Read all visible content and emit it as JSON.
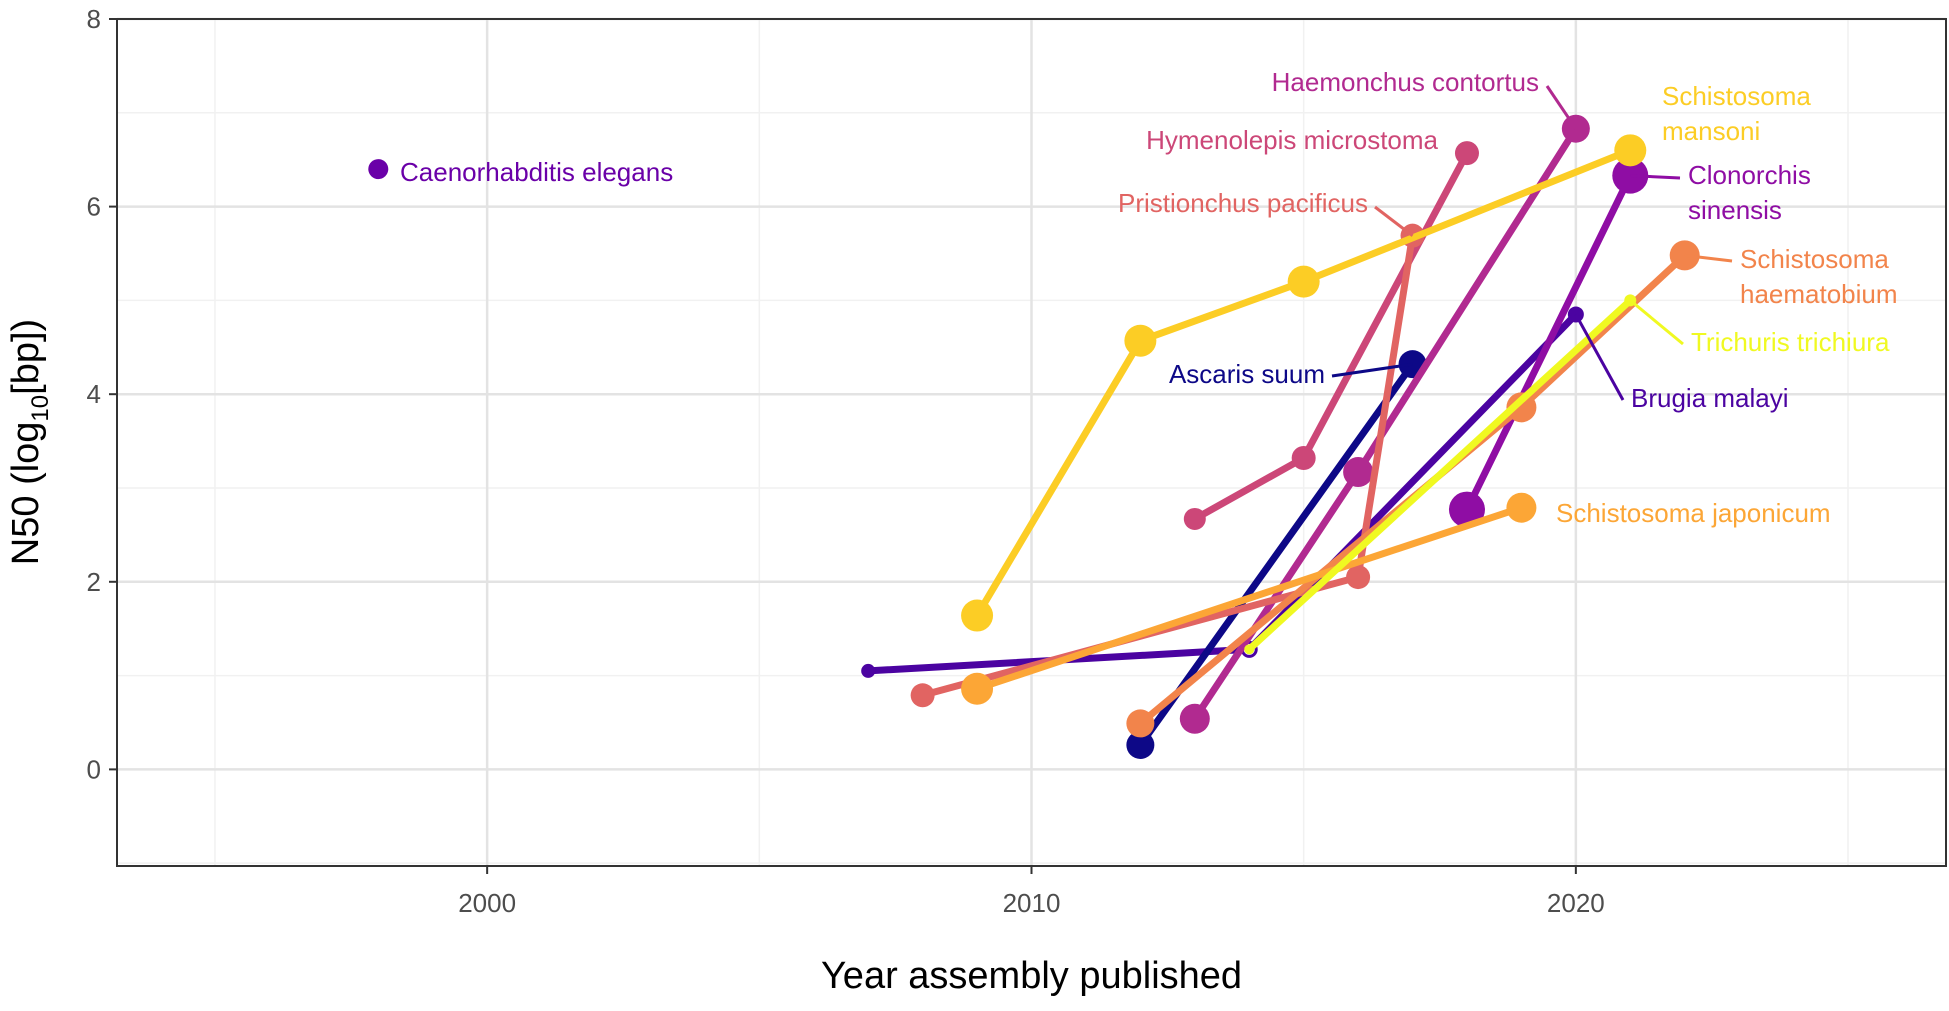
{
  "chart_data": {
    "type": "line",
    "xlabel": "Year assembly published",
    "ylabel": {
      "prefix": "N50 (log",
      "subscript": "10",
      "suffix": "[bp])"
    },
    "xlim": [
      1993.2,
      2026.8
    ],
    "ylim": [
      -1.03,
      8.0
    ],
    "x_ticks": [
      2000,
      2010,
      2020
    ],
    "y_ticks": [
      0,
      2,
      4,
      6,
      8
    ],
    "grid": true,
    "legend": "none",
    "series": [
      {
        "name": "Caenorhabditis elegans",
        "color": "#6a00a8",
        "points": [
          {
            "x": 1998,
            "y": 6.4,
            "size": 10
          }
        ]
      },
      {
        "name": "Brugia malayi",
        "color": "#4b03a1",
        "points": [
          {
            "x": 2007,
            "y": 1.05,
            "size": 7
          },
          {
            "x": 2014,
            "y": 1.28,
            "size": 7,
            "hollow": true
          },
          {
            "x": 2020,
            "y": 4.85,
            "size": 8
          }
        ]
      },
      {
        "name": "Ascaris suum",
        "color": "#0d0887",
        "points": [
          {
            "x": 2012,
            "y": 0.26,
            "size": 14
          },
          {
            "x": 2017,
            "y": 4.32,
            "size": 14
          }
        ]
      },
      {
        "name": "Clonorchis sinensis",
        "color": "#8f0da4",
        "points": [
          {
            "x": 2018,
            "y": 2.77,
            "size": 18
          },
          {
            "x": 2021,
            "y": 6.33,
            "size": 18
          }
        ]
      },
      {
        "name": "Haemonchus contortus",
        "color": "#b12a90",
        "points": [
          {
            "x": 2013,
            "y": 0.54,
            "size": 15
          },
          {
            "x": 2016,
            "y": 3.17,
            "size": 15
          },
          {
            "x": 2020,
            "y": 6.83,
            "size": 14
          }
        ]
      },
      {
        "name": "Hymenolepis microstoma",
        "color": "#cc4778",
        "points": [
          {
            "x": 2013,
            "y": 2.67,
            "size": 11
          },
          {
            "x": 2015,
            "y": 3.32,
            "size": 12
          },
          {
            "x": 2018,
            "y": 6.57,
            "size": 12
          }
        ]
      },
      {
        "name": "Pristionchus pacificus",
        "color": "#e16462",
        "points": [
          {
            "x": 2008,
            "y": 0.79,
            "size": 12
          },
          {
            "x": 2016,
            "y": 2.05,
            "size": 12
          },
          {
            "x": 2017,
            "y": 5.69,
            "size": 12
          }
        ]
      },
      {
        "name": "Schistosoma haematobium",
        "color": "#f2844b",
        "points": [
          {
            "x": 2012,
            "y": 0.49,
            "size": 14
          },
          {
            "x": 2019,
            "y": 3.86,
            "size": 15
          },
          {
            "x": 2022,
            "y": 5.48,
            "size": 15
          }
        ]
      },
      {
        "name": "Schistosoma japonicum",
        "color": "#fca636",
        "points": [
          {
            "x": 2009,
            "y": 0.86,
            "size": 16
          },
          {
            "x": 2019,
            "y": 2.79,
            "size": 15
          }
        ]
      },
      {
        "name": "Schistosoma mansoni",
        "color": "#fccd25",
        "points": [
          {
            "x": 2009,
            "y": 1.64,
            "size": 16
          },
          {
            "x": 2012,
            "y": 4.57,
            "size": 16
          },
          {
            "x": 2015,
            "y": 5.2,
            "size": 16
          },
          {
            "x": 2021,
            "y": 6.6,
            "size": 16
          }
        ]
      },
      {
        "name": "Trichuris trichiura",
        "color": "#f0f921",
        "points": [
          {
            "x": 2014,
            "y": 1.28,
            "size": 5
          },
          {
            "x": 2021,
            "y": 5.0,
            "size": 6
          }
        ]
      }
    ]
  },
  "labels": [
    {
      "series": "Caenorhabditis elegans",
      "lines": [
        "Caenorhabditis elegans"
      ],
      "color": "#6a00a8"
    },
    {
      "series": "Haemonchus contortus",
      "lines": [
        "Haemonchus contortus"
      ],
      "color": "#b12a90"
    },
    {
      "series": "Schistosoma mansoni",
      "lines": [
        "Schistosoma",
        "mansoni"
      ],
      "color": "#fccd25"
    },
    {
      "series": "Hymenolepis microstoma",
      "lines": [
        "Hymenolepis microstoma"
      ],
      "color": "#cc4778"
    },
    {
      "series": "Clonorchis sinensis",
      "lines": [
        "Clonorchis",
        "sinensis"
      ],
      "color": "#8f0da4"
    },
    {
      "series": "Pristionchus pacificus",
      "lines": [
        "Pristionchus pacificus"
      ],
      "color": "#e16462"
    },
    {
      "series": "Schistosoma haematobium",
      "lines": [
        "Schistosoma",
        "haematobium"
      ],
      "color": "#f2844b"
    },
    {
      "series": "Trichuris trichiura",
      "lines": [
        "Trichuris trichiura"
      ],
      "color": "#f0f921"
    },
    {
      "series": "Ascaris suum",
      "lines": [
        "Ascaris suum"
      ],
      "color": "#0d0887"
    },
    {
      "series": "Brugia malayi",
      "lines": [
        "Brugia malayi"
      ],
      "color": "#4b03a1"
    },
    {
      "series": "Schistosoma japonicum",
      "lines": [
        "Schistosoma japonicum"
      ],
      "color": "#fca636"
    }
  ]
}
